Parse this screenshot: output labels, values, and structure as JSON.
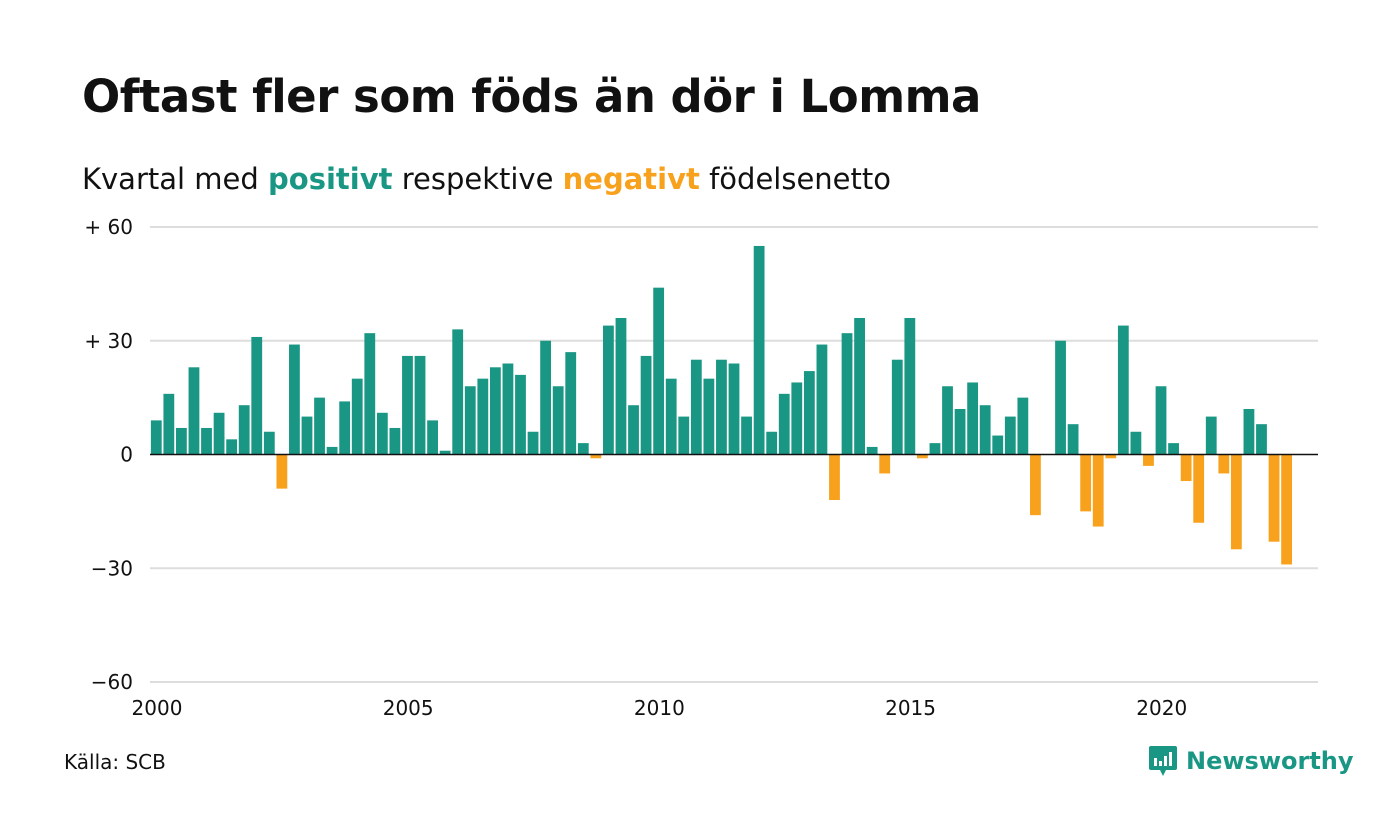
{
  "title": "Oftast fler som föds än dör i Lomma",
  "subtitle": {
    "prefix": "Kvartal med ",
    "positive_word": "positivt",
    "middle": " respektive ",
    "negative_word": "negativt",
    "suffix": " födelsenetto"
  },
  "source": "Källa: SCB",
  "brand": "Newsworthy",
  "colors": {
    "positive": "#1a9784",
    "negative": "#f7a11c",
    "grid": "#dddddd",
    "axis": "#111111"
  },
  "chart_data": {
    "type": "bar",
    "title": "Oftast fler som föds än dör i Lomma",
    "subtitle": "Kvartal med positivt respektive negativt födelsenetto",
    "x_start": 2000.0,
    "x_step": 0.25,
    "xlim": [
      2000,
      2023.25
    ],
    "ylim": [
      -60,
      60
    ],
    "y_ticks": [
      60,
      30,
      0,
      -30,
      -60
    ],
    "y_tick_labels": [
      "+ 60",
      "+ 30",
      "0",
      "−30",
      "−60"
    ],
    "x_ticks": [
      2000,
      2005,
      2010,
      2015,
      2020
    ],
    "x_tick_labels": [
      "2000",
      "2005",
      "2010",
      "2015",
      "2020"
    ],
    "grid": true,
    "values": [
      9,
      16,
      7,
      23,
      7,
      11,
      4,
      13,
      31,
      6,
      -9,
      29,
      10,
      15,
      2,
      14,
      20,
      32,
      11,
      7,
      26,
      26,
      9,
      1,
      33,
      18,
      20,
      23,
      24,
      21,
      6,
      30,
      18,
      27,
      3,
      -1,
      34,
      36,
      13,
      26,
      44,
      20,
      10,
      25,
      20,
      25,
      24,
      10,
      55,
      6,
      16,
      19,
      22,
      29,
      -12,
      32,
      36,
      2,
      -5,
      25,
      36,
      -1,
      3,
      18,
      12,
      19,
      13,
      5,
      10,
      15,
      -16,
      0,
      30,
      8,
      -15,
      -19,
      -1,
      34,
      6,
      -3,
      18,
      3,
      -7,
      -18,
      10,
      -5,
      -25,
      12,
      8,
      -23,
      -29
    ]
  }
}
